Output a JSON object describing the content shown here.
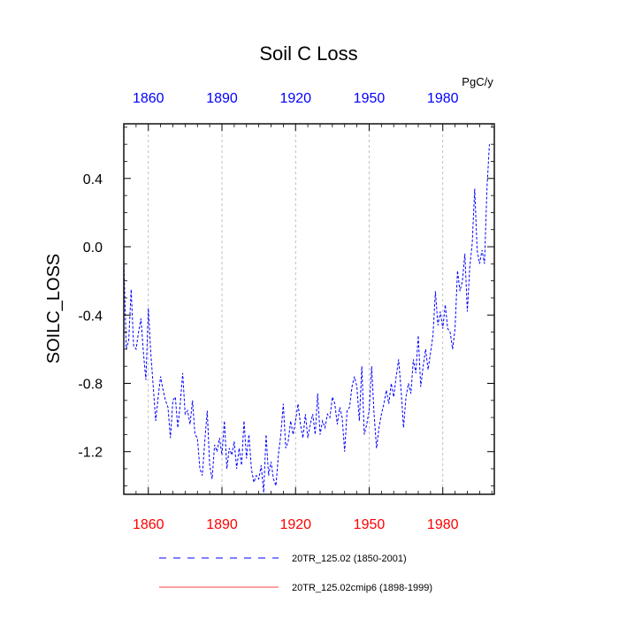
{
  "chart_data": {
    "type": "line",
    "title": "Soil C Loss",
    "units": "PgC/y",
    "ylabel": "SOILC_LOSS",
    "xlabel": "",
    "xlim": [
      1850,
      2001
    ],
    "ylim": [
      -1.45,
      0.72
    ],
    "x_ticks": [
      1860,
      1890,
      1920,
      1950,
      1980
    ],
    "y_ticks": [
      0.4,
      0.0,
      -0.4,
      -0.8,
      -1.2
    ],
    "y_tick_labels": [
      "0.4",
      "0.0",
      "-0.4",
      "-0.8",
      "-1.2"
    ],
    "grid": "vertical dashed",
    "colors": {
      "top_axis_labels": "#0000ff",
      "bottom_axis_labels": "#ff0000",
      "series1": "#0000ff",
      "series2": "#ff0000"
    },
    "legend": [
      {
        "label": "20TR_125.02 (1850-2001)",
        "color": "#0000ff",
        "style": "dashed"
      },
      {
        "label": "20TR_125.02cmip6 (1898-1999)",
        "color": "#ff0000",
        "style": "solid"
      }
    ],
    "series": [
      {
        "name": "20TR_125.02 (1850-2001)",
        "color": "#0000ff",
        "style": "dashed",
        "x_start": 1850,
        "values": [
          -0.08,
          -0.6,
          -0.55,
          -0.25,
          -0.58,
          -0.6,
          -0.5,
          -0.42,
          -0.62,
          -0.78,
          -0.36,
          -0.62,
          -0.82,
          -1.02,
          -0.88,
          -0.76,
          -0.84,
          -0.9,
          -0.94,
          -1.12,
          -0.9,
          -0.88,
          -1.06,
          -0.92,
          -0.74,
          -0.98,
          -0.96,
          -1.04,
          -0.9,
          -1.1,
          -1.12,
          -1.3,
          -1.34,
          -1.14,
          -0.96,
          -1.28,
          -1.36,
          -1.16,
          -1.2,
          -1.12,
          -1.22,
          -1.02,
          -1.3,
          -1.18,
          -1.22,
          -1.14,
          -1.3,
          -1.18,
          -1.28,
          -1.02,
          -1.24,
          -1.1,
          -1.3,
          -1.38,
          -1.34,
          -1.36,
          -1.28,
          -1.44,
          -1.1,
          -1.34,
          -1.26,
          -1.36,
          -1.4,
          -1.22,
          -1.1,
          -0.92,
          -1.18,
          -1.14,
          -1.02,
          -1.1,
          -1.02,
          -0.92,
          -1.04,
          -1.12,
          -0.98,
          -1.12,
          -1.04,
          -0.98,
          -1.1,
          -0.86,
          -1.1,
          -1.02,
          -1.06,
          -0.98,
          -1.0,
          -0.88,
          -0.92,
          -1.04,
          -0.94,
          -1.0,
          -1.2,
          -0.96,
          -0.94,
          -0.82,
          -0.76,
          -0.82,
          -1.02,
          -0.7,
          -1.1,
          -1.04,
          -0.96,
          -0.7,
          -0.98,
          -1.18,
          -1.06,
          -0.98,
          -0.92,
          -0.84,
          -0.92,
          -0.8,
          -0.88,
          -0.76,
          -0.66,
          -0.84,
          -1.06,
          -0.88,
          -0.8,
          -0.86,
          -0.66,
          -0.74,
          -0.52,
          -0.82,
          -0.7,
          -0.6,
          -0.72,
          -0.62,
          -0.52,
          -0.26,
          -0.46,
          -0.38,
          -0.48,
          -0.34,
          -0.48,
          -0.5,
          -0.6,
          -0.48,
          -0.14,
          -0.26,
          -0.2,
          -0.04,
          -0.38,
          -0.12,
          0.02,
          0.34,
          -0.02,
          -0.1,
          -0.02,
          -0.1,
          0.34,
          0.6
        ]
      },
      {
        "name": "20TR_125.02cmip6 (1898-1999)",
        "color": "#ff0000",
        "style": "solid",
        "x_start": 1898,
        "values": []
      }
    ]
  }
}
